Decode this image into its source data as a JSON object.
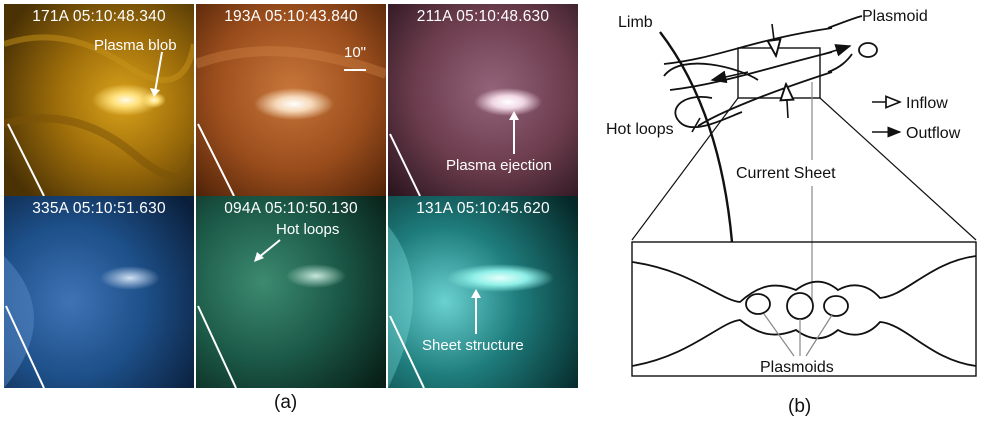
{
  "panel_a": {
    "tiles": [
      {
        "label": "171A 05:10:48.340",
        "color": "#b9820c"
      },
      {
        "label": "193A 05:10:43.840",
        "color": "#a2531d"
      },
      {
        "label": "211A 05:10:48.630",
        "color": "#6b3c4c"
      },
      {
        "label": "335A 05:10:51.630",
        "color": "#1d4f88"
      },
      {
        "label": "094A 05:10:50.130",
        "color": "#1c5a48"
      },
      {
        "label": "131A 05:10:45.620",
        "color": "#136062"
      }
    ],
    "annotations": {
      "plasma_blob": "Plasma blob",
      "scale": "10\"",
      "plasma_ejection": "Plasma ejection",
      "hot_loops": "Hot loops",
      "sheet_structure": "Sheet structure"
    },
    "caption": "(a)"
  },
  "panel_b": {
    "limb": "Limb",
    "plasmoid": "Plasmoid",
    "inflow": "Inflow",
    "outflow": "Outflow",
    "hot_loops": "Hot loops",
    "current_sheet": "Current Sheet",
    "plasmoids": "Plasmoids",
    "caption": "(b)"
  }
}
